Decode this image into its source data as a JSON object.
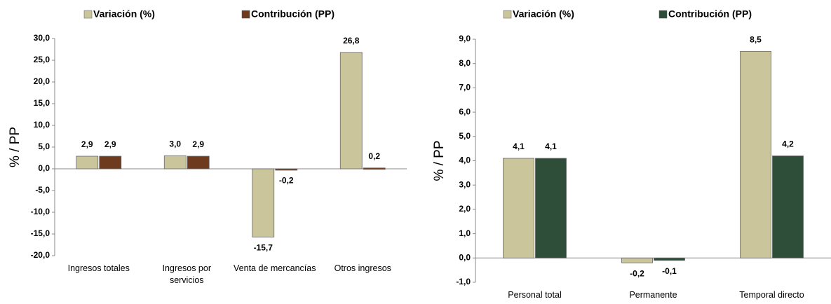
{
  "chart_data": [
    {
      "type": "bar",
      "y_label": "% / PP",
      "categories": [
        "Ingresos totales",
        "Ingresos por servicios",
        "Venta de mercancías",
        "Otros ingresos"
      ],
      "series": [
        {
          "name": "Variación (%)",
          "color": "#cbc59c",
          "values": [
            2.9,
            3.0,
            -15.7,
            26.8
          ],
          "value_labels": [
            "2,9",
            "3,0",
            "-15,7",
            "26,8"
          ]
        },
        {
          "name": "Contribución (PP)",
          "color": "#6e3b1e",
          "values": [
            2.9,
            2.9,
            -0.2,
            0.2
          ],
          "value_labels": [
            "2,9",
            "2,9",
            "-0,2",
            "0,2"
          ]
        }
      ],
      "ylim": [
        -20,
        30
      ],
      "yticks": [
        {
          "value": -20,
          "label": "-20,0"
        },
        {
          "value": -15,
          "label": "-15,0"
        },
        {
          "value": -10,
          "label": "-10,0"
        },
        {
          "value": -5,
          "label": "-5,0"
        },
        {
          "value": 0,
          "label": "0,0"
        },
        {
          "value": 5,
          "label": "5,0"
        },
        {
          "value": 10,
          "label": "10,0"
        },
        {
          "value": 15,
          "label": "15,0"
        },
        {
          "value": 20,
          "label": "20,0"
        },
        {
          "value": 25,
          "label": "25,0"
        },
        {
          "value": 30,
          "label": "30,0"
        }
      ],
      "grid": false
    },
    {
      "type": "bar",
      "y_label": "% / PP",
      "categories": [
        "Personal total",
        "Permanente",
        "Temporal directo"
      ],
      "series": [
        {
          "name": "Variación (%)",
          "color": "#cbc59c",
          "values": [
            4.1,
            -0.2,
            8.5
          ],
          "value_labels": [
            "4,1",
            "-0,2",
            "8,5"
          ]
        },
        {
          "name": "Contribución (PP)",
          "color": "#2f4e39",
          "values": [
            4.1,
            -0.1,
            4.2
          ],
          "value_labels": [
            "4,1",
            "-0,1",
            "4,2"
          ]
        }
      ],
      "ylim": [
        -1,
        9
      ],
      "yticks": [
        {
          "value": -1,
          "label": "-1,0"
        },
        {
          "value": 0,
          "label": "0,0"
        },
        {
          "value": 1,
          "label": "1,0"
        },
        {
          "value": 2,
          "label": "2,0"
        },
        {
          "value": 3,
          "label": "3,0"
        },
        {
          "value": 4,
          "label": "4,0"
        },
        {
          "value": 5,
          "label": "5,0"
        },
        {
          "value": 6,
          "label": "6,0"
        },
        {
          "value": 7,
          "label": "7,0"
        },
        {
          "value": 8,
          "label": "8,0"
        },
        {
          "value": 9,
          "label": "9,0"
        }
      ],
      "grid": false
    }
  ]
}
